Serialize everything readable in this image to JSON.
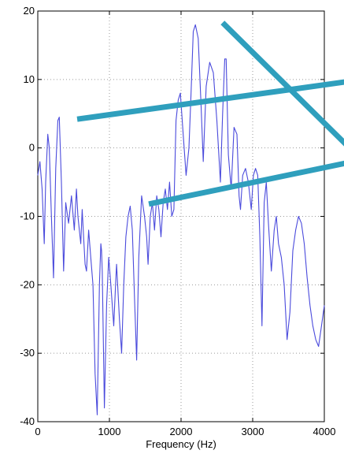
{
  "chart_data": {
    "type": "line",
    "title": "",
    "xlabel": "Frequency (Hz)",
    "ylabel": "",
    "xlim": [
      0,
      4000
    ],
    "ylim": [
      -40,
      20
    ],
    "grid": true,
    "x_ticks": [
      0,
      1000,
      2000,
      3000,
      4000
    ],
    "x_tick_labels": [
      "0",
      "1000",
      "2000",
      "3000",
      "4000"
    ],
    "y_ticks": [
      -40,
      -30,
      -20,
      -10,
      0,
      10,
      20
    ],
    "y_tick_labels": [
      "-40",
      "-30",
      "-20",
      "-10",
      "0",
      "10",
      "20"
    ],
    "series": [
      {
        "color": "#4a4adc",
        "x": [
          0,
          30,
          60,
          90,
          110,
          140,
          160,
          190,
          220,
          250,
          280,
          300,
          330,
          360,
          390,
          430,
          470,
          510,
          540,
          560,
          600,
          620,
          640,
          660,
          680,
          710,
          740,
          770,
          800,
          830,
          860,
          880,
          890,
          900,
          930,
          960,
          990,
          1020,
          1060,
          1090,
          1100,
          1110,
          1140,
          1170,
          1200,
          1230,
          1260,
          1290,
          1320,
          1350,
          1380,
          1410,
          1450,
          1490,
          1520,
          1540,
          1570,
          1600,
          1630,
          1660,
          1690,
          1720,
          1750,
          1780,
          1810,
          1840,
          1870,
          1900,
          1930,
          1960,
          1990,
          2030,
          2070,
          2110,
          2140,
          2170,
          2200,
          2240,
          2280,
          2310,
          2350,
          2400,
          2450,
          2500,
          2550,
          2580,
          2610,
          2630,
          2660,
          2700,
          2740,
          2780,
          2810,
          2830,
          2860,
          2900,
          2940,
          2980,
          3010,
          3040,
          3070,
          3100,
          3130,
          3160,
          3190,
          3220,
          3260,
          3300,
          3330,
          3360,
          3400,
          3440,
          3480,
          3520,
          3560,
          3600,
          3640,
          3680,
          3720,
          3760,
          3800,
          3840,
          3880,
          3920,
          3960,
          4000
        ],
        "y": [
          -4,
          -2,
          -6,
          -14,
          -5,
          2,
          0,
          -10,
          -19,
          -3,
          4,
          4.5,
          -5,
          -18,
          -8,
          -11,
          -7,
          -12,
          -6,
          -10,
          -14,
          -9,
          -13,
          -17,
          -18,
          -12,
          -16,
          -20,
          -33,
          -39,
          -20,
          -14,
          -15,
          -18,
          -38,
          -23,
          -16,
          -20,
          -26,
          -19,
          -17,
          -19,
          -25,
          -30,
          -20,
          -13,
          -10,
          -8.5,
          -12,
          -22,
          -31,
          -16,
          -7,
          -10,
          -13,
          -17,
          -10,
          -8,
          -12,
          -7,
          -9,
          -13,
          -8,
          -6,
          -9,
          -5,
          -10,
          -9,
          4,
          7,
          8,
          2,
          -4,
          0,
          8,
          17,
          18,
          16,
          6,
          -2,
          9,
          12.5,
          11,
          4,
          -5,
          5,
          13,
          13,
          -1,
          -6,
          3,
          2,
          -7,
          -9,
          -4,
          -3,
          -5,
          -9,
          -4,
          -3,
          -4,
          -13,
          -26,
          -8,
          -5,
          -11,
          -18,
          -12,
          -10,
          -14,
          -16,
          -20,
          -28,
          -24,
          -15,
          -12,
          -10,
          -11,
          -14,
          -19,
          -23,
          -26,
          -28,
          -29,
          -26,
          -23
        ]
      }
    ],
    "annotations": {
      "overlay_color": "#2f9fbd",
      "overlay_lines": [
        {
          "x1": 550,
          "y1": 4.2,
          "x2": 4400,
          "y2": 9.8
        },
        {
          "x1": 1550,
          "y1": -8.2,
          "x2": 4400,
          "y2": -2.0
        },
        {
          "x1": 2580,
          "y1": 18.3,
          "x2": 4400,
          "y2": -0.5
        }
      ]
    }
  }
}
